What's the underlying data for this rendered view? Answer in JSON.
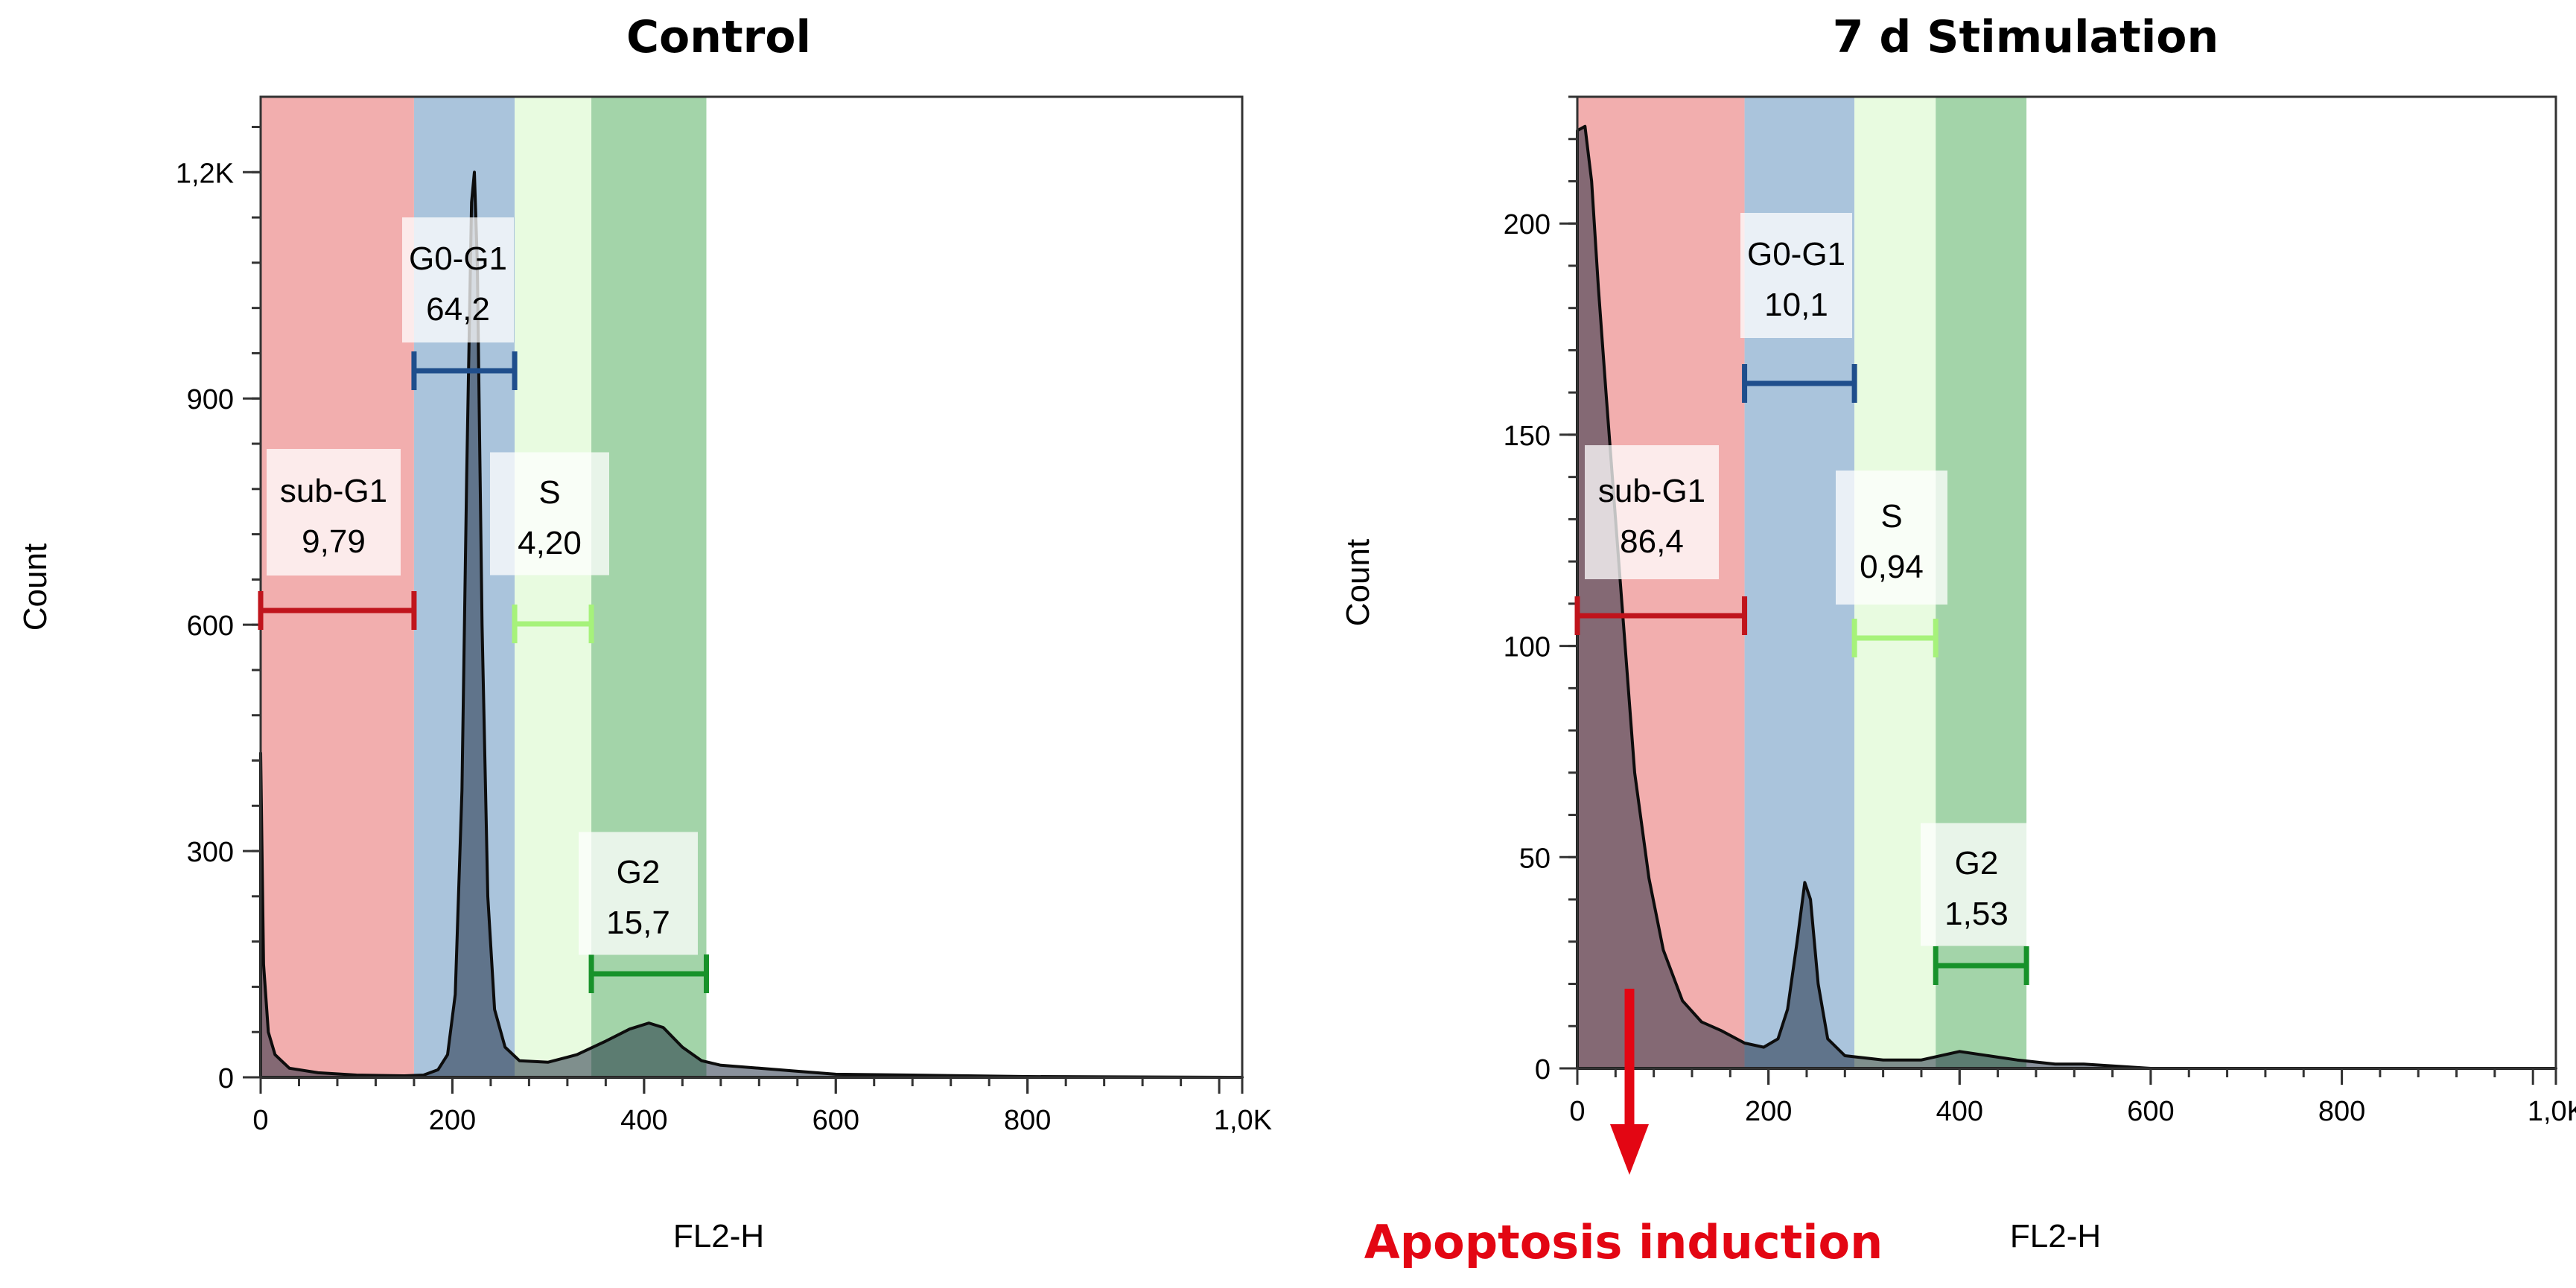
{
  "chart_data": [
    {
      "type": "histogram",
      "title": "Control",
      "xlabel": "FL2-H",
      "ylabel": "Count",
      "xlim": [
        0,
        1024
      ],
      "ylim": [
        0,
        1300
      ],
      "x_ticks": [
        0,
        200,
        400,
        600,
        800,
        1024
      ],
      "x_tick_labels": [
        "0",
        "200",
        "400",
        "600",
        "800",
        "1,0K"
      ],
      "y_ticks": [
        0,
        300,
        600,
        900,
        1200
      ],
      "y_tick_labels": [
        "0",
        "300",
        "600",
        "900",
        "1,2K"
      ],
      "gates": [
        {
          "name": "sub-G1",
          "value": "9,79",
          "range": [
            0,
            160
          ],
          "color": "#f2aeae",
          "marker_color": "#c0141c"
        },
        {
          "name": "G0-G1",
          "value": "64,2",
          "range": [
            160,
            265
          ],
          "color": "#aac4dc",
          "marker_color": "#1f4e8c"
        },
        {
          "name": "S",
          "value": "4,20",
          "range": [
            265,
            345
          ],
          "color": "#e8fbe0",
          "marker_color": "#a6f27a"
        },
        {
          "name": "G2",
          "value": "15,7",
          "range": [
            345,
            465
          ],
          "color": "#a3d4a9",
          "marker_color": "#17922a"
        }
      ],
      "histogram": [
        [
          0,
          430
        ],
        [
          3,
          150
        ],
        [
          8,
          60
        ],
        [
          15,
          30
        ],
        [
          30,
          12
        ],
        [
          60,
          6
        ],
        [
          100,
          3
        ],
        [
          150,
          2
        ],
        [
          170,
          3
        ],
        [
          185,
          10
        ],
        [
          195,
          30
        ],
        [
          203,
          110
        ],
        [
          210,
          380
        ],
        [
          215,
          800
        ],
        [
          220,
          1160
        ],
        [
          223,
          1200
        ],
        [
          226,
          1080
        ],
        [
          231,
          600
        ],
        [
          237,
          240
        ],
        [
          244,
          90
        ],
        [
          255,
          40
        ],
        [
          270,
          22
        ],
        [
          300,
          20
        ],
        [
          330,
          30
        ],
        [
          360,
          48
        ],
        [
          385,
          64
        ],
        [
          405,
          72
        ],
        [
          420,
          66
        ],
        [
          440,
          40
        ],
        [
          460,
          22
        ],
        [
          480,
          16
        ],
        [
          520,
          12
        ],
        [
          560,
          8
        ],
        [
          600,
          4
        ],
        [
          680,
          3
        ],
        [
          800,
          1
        ],
        [
          1024,
          0
        ]
      ]
    },
    {
      "type": "histogram",
      "title": "7 d Stimulation",
      "xlabel": "FL2-H",
      "ylabel": "Count",
      "xlim": [
        0,
        1024
      ],
      "ylim": [
        0,
        230
      ],
      "x_ticks": [
        0,
        200,
        400,
        600,
        800,
        1024
      ],
      "x_tick_labels": [
        "0",
        "200",
        "400",
        "600",
        "800",
        "1,0K"
      ],
      "y_ticks": [
        0,
        50,
        100,
        150,
        200
      ],
      "y_tick_labels": [
        "0",
        "50",
        "100",
        "150",
        "200"
      ],
      "gates": [
        {
          "name": "sub-G1",
          "value": "86,4",
          "range": [
            0,
            175
          ],
          "color": "#f2aeae",
          "marker_color": "#c0141c"
        },
        {
          "name": "G0-G1",
          "value": "10,1",
          "range": [
            175,
            290
          ],
          "color": "#aac4dc",
          "marker_color": "#1f4e8c"
        },
        {
          "name": "S",
          "value": "0,94",
          "range": [
            290,
            375
          ],
          "color": "#e8fbe0",
          "marker_color": "#a6f27a"
        },
        {
          "name": "G2",
          "value": "1,53",
          "range": [
            375,
            470
          ],
          "color": "#a3d4a9",
          "marker_color": "#17922a"
        }
      ],
      "histogram": [
        [
          0,
          222
        ],
        [
          8,
          223
        ],
        [
          15,
          210
        ],
        [
          22,
          185
        ],
        [
          30,
          160
        ],
        [
          40,
          130
        ],
        [
          50,
          100
        ],
        [
          60,
          70
        ],
        [
          75,
          45
        ],
        [
          90,
          28
        ],
        [
          110,
          16
        ],
        [
          130,
          11
        ],
        [
          150,
          9
        ],
        [
          175,
          6
        ],
        [
          195,
          5
        ],
        [
          210,
          7
        ],
        [
          220,
          14
        ],
        [
          230,
          30
        ],
        [
          238,
          44
        ],
        [
          244,
          40
        ],
        [
          252,
          20
        ],
        [
          262,
          7
        ],
        [
          280,
          3
        ],
        [
          320,
          2
        ],
        [
          360,
          2
        ],
        [
          400,
          4
        ],
        [
          430,
          3
        ],
        [
          460,
          2
        ],
        [
          500,
          1
        ],
        [
          530,
          1
        ],
        [
          600,
          0
        ],
        [
          1024,
          0
        ]
      ]
    }
  ],
  "annotation": {
    "text": "Apoptosis induction",
    "color": "#e30613"
  }
}
